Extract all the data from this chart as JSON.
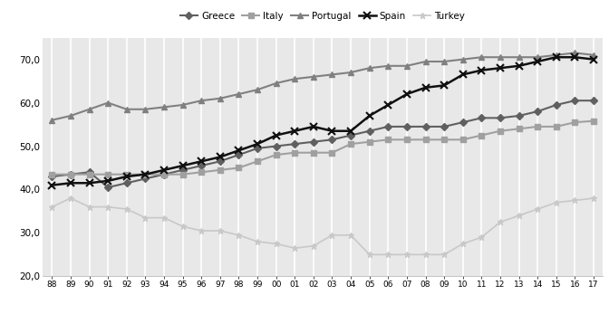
{
  "years": [
    1988,
    1989,
    1990,
    1991,
    1992,
    1993,
    1994,
    1995,
    1996,
    1997,
    1998,
    1999,
    2000,
    2001,
    2002,
    2003,
    2004,
    2005,
    2006,
    2007,
    2008,
    2009,
    2010,
    2011,
    2012,
    2013,
    2014,
    2015,
    2016,
    2017
  ],
  "Greece": [
    43.0,
    43.5,
    44.0,
    40.5,
    41.5,
    42.5,
    43.5,
    44.5,
    45.5,
    46.5,
    48.0,
    49.5,
    50.0,
    50.5,
    51.0,
    51.5,
    52.5,
    53.5,
    54.5,
    54.5,
    54.5,
    54.5,
    55.5,
    56.5,
    56.5,
    57.0,
    58.0,
    59.5,
    60.5,
    60.5
  ],
  "Italy": [
    43.5,
    43.5,
    43.5,
    43.5,
    43.5,
    43.5,
    43.5,
    43.5,
    44.0,
    44.5,
    45.0,
    46.5,
    48.0,
    48.5,
    48.5,
    48.5,
    50.5,
    51.0,
    51.5,
    51.5,
    51.5,
    51.5,
    51.5,
    52.5,
    53.5,
    54.0,
    54.5,
    54.5,
    55.5,
    55.8
  ],
  "Portugal": [
    56.0,
    57.0,
    58.5,
    60.0,
    58.5,
    58.5,
    59.0,
    59.5,
    60.5,
    61.0,
    62.0,
    63.0,
    64.5,
    65.5,
    66.0,
    66.5,
    67.0,
    68.0,
    68.5,
    68.5,
    69.5,
    69.5,
    70.0,
    70.5,
    70.5,
    70.5,
    70.5,
    71.0,
    71.5,
    71.0
  ],
  "Spain": [
    41.0,
    41.5,
    41.5,
    42.0,
    43.0,
    43.5,
    44.5,
    45.5,
    46.5,
    47.5,
    49.0,
    50.5,
    52.5,
    53.5,
    54.5,
    53.5,
    53.5,
    57.0,
    59.5,
    62.0,
    63.5,
    64.0,
    66.5,
    67.5,
    68.0,
    68.5,
    69.5,
    70.5,
    70.5,
    70.0
  ],
  "Turkey": [
    36.0,
    38.0,
    36.0,
    36.0,
    35.5,
    33.5,
    33.5,
    31.5,
    30.5,
    30.5,
    29.5,
    28.0,
    27.5,
    26.5,
    27.0,
    29.5,
    29.5,
    25.0,
    25.0,
    25.0,
    25.0,
    25.0,
    27.5,
    29.0,
    32.5,
    34.0,
    35.5,
    37.0,
    37.5,
    38.0
  ],
  "colors": {
    "Greece": "#606060",
    "Italy": "#a0a0a0",
    "Portugal": "#808080",
    "Spain": "#101010",
    "Turkey": "#c8c8c8"
  },
  "markers": {
    "Greece": "D",
    "Italy": "s",
    "Portugal": "^",
    "Spain": "x",
    "Turkey": "*"
  },
  "ylim": [
    20.0,
    75.0
  ],
  "yticks": [
    20.0,
    30.0,
    40.0,
    50.0,
    60.0,
    70.0
  ],
  "background_color": "#ffffff",
  "plot_bg_color": "#e8e8e8"
}
